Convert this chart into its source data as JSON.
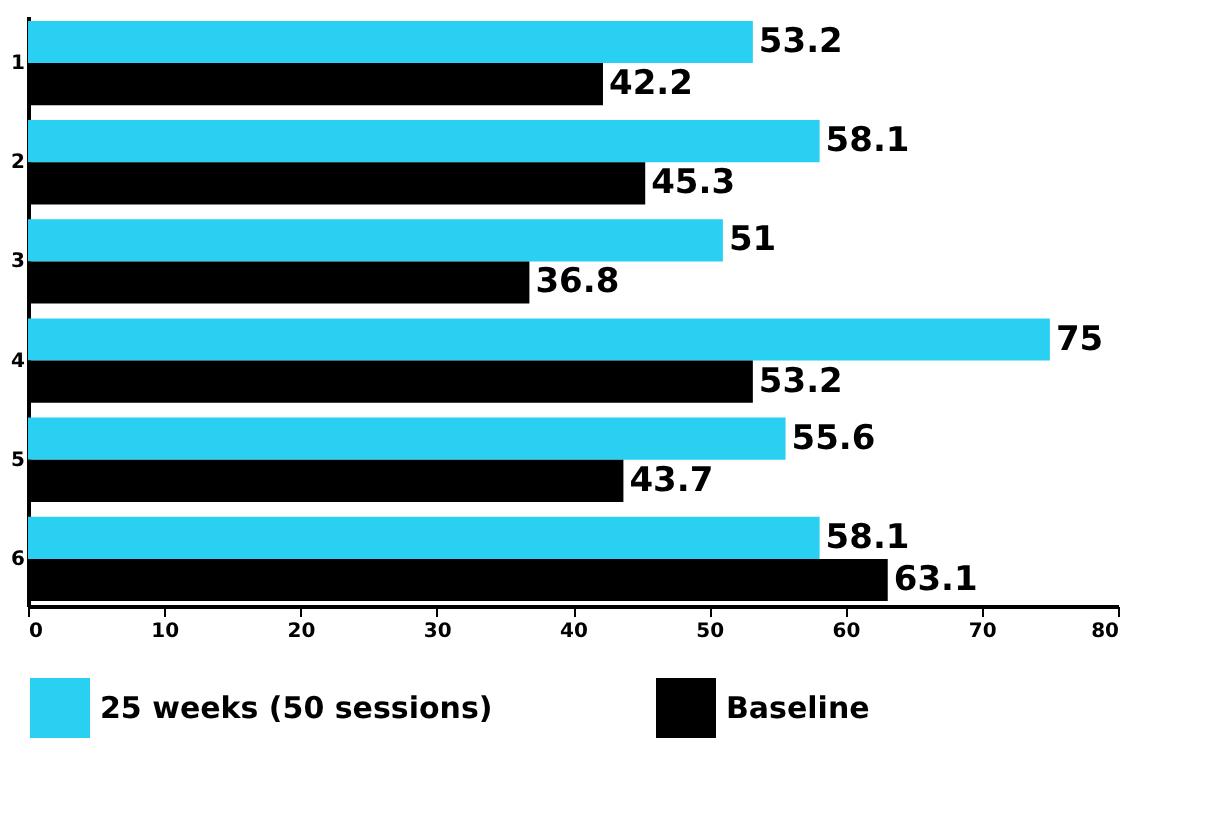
{
  "chart_data": {
    "type": "bar",
    "orientation": "horizontal",
    "categories": [
      "1",
      "2",
      "3",
      "4",
      "5",
      "6"
    ],
    "series": [
      {
        "name": "25 weeks (50 sessions)",
        "color": "#29d0f2",
        "values": [
          53.2,
          58.1,
          51,
          75,
          55.6,
          58.1
        ]
      },
      {
        "name": "Baseline",
        "color": "#000000",
        "values": [
          42.2,
          45.3,
          36.8,
          53.2,
          43.7,
          63.1
        ]
      }
    ],
    "xlim": [
      0,
      80
    ],
    "xticks": [
      0,
      10,
      20,
      30,
      40,
      50,
      60,
      70,
      80
    ],
    "data_labels": true,
    "legend": "bottom",
    "grid": false
  }
}
